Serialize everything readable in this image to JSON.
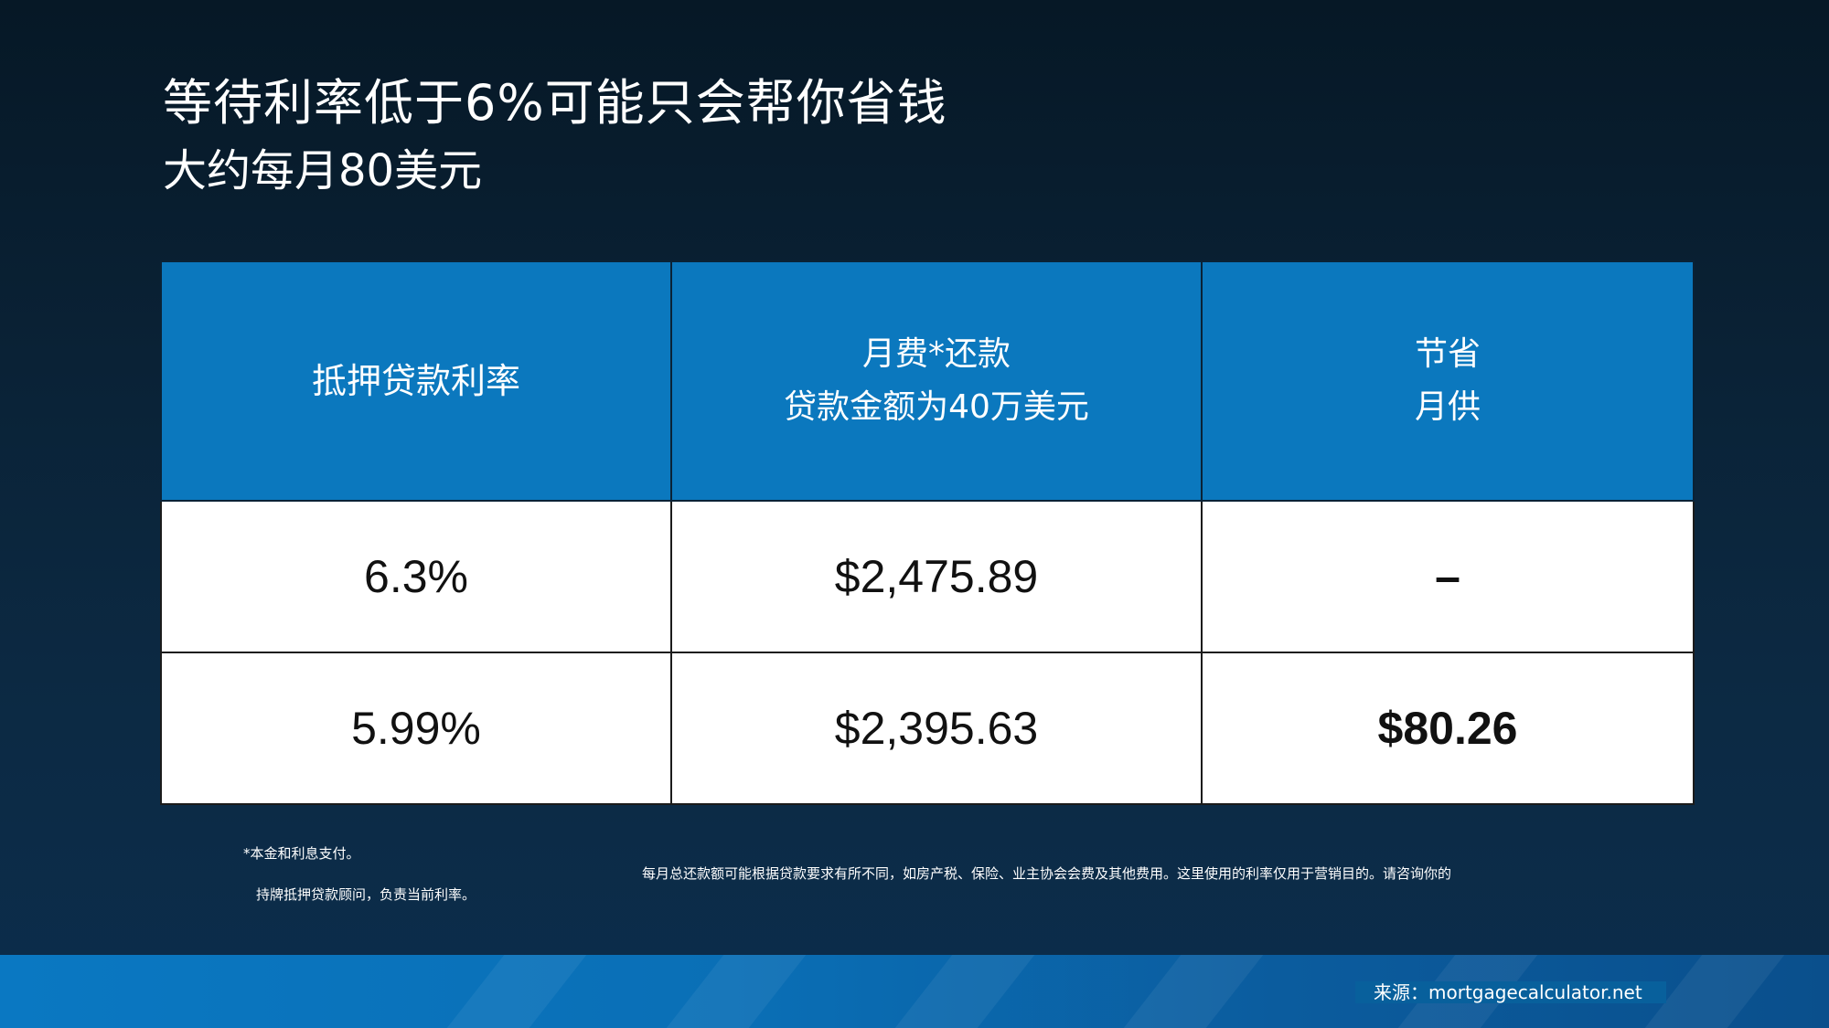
{
  "title": {
    "line1": "等待利率低于6%可能只会帮你省钱",
    "line2": "大约每月80美元"
  },
  "table": {
    "headers": {
      "rate": "抵押贷款利率",
      "payment_line1": "月费*还款",
      "payment_line2": "贷款金额为40万美元",
      "savings_line1": "节省",
      "savings_line2": "月供"
    },
    "rows": [
      {
        "rate": "6.3%",
        "payment": "$2,475.89",
        "savings": "–"
      },
      {
        "rate": "5.99%",
        "payment": "$2,395.63",
        "savings": "$80.26"
      }
    ]
  },
  "footnotes": {
    "note1": "*本金和利息支付。",
    "note2": "每月总还款额可能根据贷款要求有所不同，如房产税、保险、业主协会会费及其他费用。这里使用的利率仅用于营销目的。请咨询你的",
    "note3": "持牌抵押贷款顾问，负责当前利率。"
  },
  "source": "来源：mortgagecalculator.net",
  "colors": {
    "background_dark": "#061826",
    "header_blue": "#0b78be",
    "band_blue": "#0a78c2"
  }
}
